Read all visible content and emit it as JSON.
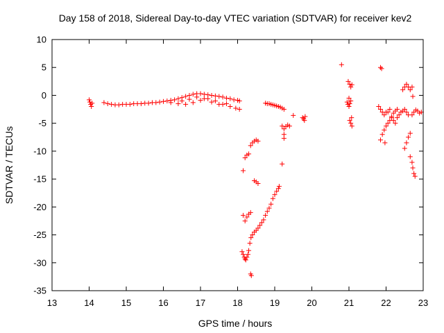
{
  "chart_data": {
    "type": "scatter",
    "title": "Day 158 of 2018, Sidereal Day-to-day VTEC variation (SDTVAR) for receiver kev2",
    "xlabel": "GPS time / hours",
    "ylabel": "SDTVAR / TECUs",
    "xlim": [
      13,
      23
    ],
    "ylim": [
      -35,
      10
    ],
    "xticks": [
      "13",
      "14",
      "15",
      "16",
      "17",
      "18",
      "19",
      "20",
      "21",
      "22",
      "23"
    ],
    "yticks": [
      "10",
      "5",
      "0",
      "-5",
      "-10",
      "-15",
      "-20",
      "-25",
      "-30",
      "-35"
    ],
    "marker": "+",
    "color": "#ff0000",
    "series": [
      {
        "name": "SDTVAR",
        "points": [
          [
            14.0,
            -0.8
          ],
          [
            14.02,
            -1.2
          ],
          [
            14.04,
            -1.6
          ],
          [
            14.06,
            -2.0
          ],
          [
            14.08,
            -1.4
          ],
          [
            14.4,
            -1.3
          ],
          [
            14.5,
            -1.5
          ],
          [
            14.6,
            -1.6
          ],
          [
            14.7,
            -1.7
          ],
          [
            14.8,
            -1.7
          ],
          [
            14.9,
            -1.6
          ],
          [
            15.0,
            -1.6
          ],
          [
            15.1,
            -1.6
          ],
          [
            15.2,
            -1.5
          ],
          [
            15.3,
            -1.5
          ],
          [
            15.4,
            -1.5
          ],
          [
            15.5,
            -1.4
          ],
          [
            15.6,
            -1.4
          ],
          [
            15.7,
            -1.3
          ],
          [
            15.8,
            -1.3
          ],
          [
            15.9,
            -1.2
          ],
          [
            16.0,
            -1.1
          ],
          [
            16.1,
            -1.0
          ],
          [
            16.2,
            -0.9
          ],
          [
            16.3,
            -0.8
          ],
          [
            16.4,
            -0.6
          ],
          [
            16.5,
            -0.4
          ],
          [
            16.6,
            -0.2
          ],
          [
            16.7,
            0.0
          ],
          [
            16.8,
            0.2
          ],
          [
            16.9,
            0.3
          ],
          [
            17.0,
            0.3
          ],
          [
            17.1,
            0.2
          ],
          [
            17.2,
            0.1
          ],
          [
            17.3,
            0.0
          ],
          [
            17.4,
            -0.1
          ],
          [
            17.5,
            -0.2
          ],
          [
            17.6,
            -0.3
          ],
          [
            17.7,
            -0.5
          ],
          [
            17.8,
            -0.6
          ],
          [
            17.9,
            -0.8
          ],
          [
            18.0,
            -0.9
          ],
          [
            18.05,
            -1.0
          ],
          [
            16.2,
            -1.3
          ],
          [
            16.4,
            -1.5
          ],
          [
            16.6,
            -1.6
          ],
          [
            16.8,
            -1.3
          ],
          [
            17.0,
            -0.9
          ],
          [
            17.2,
            -0.6
          ],
          [
            17.4,
            -1.0
          ],
          [
            17.6,
            -1.6
          ],
          [
            17.8,
            -2.0
          ],
          [
            17.95,
            -2.3
          ],
          [
            18.05,
            -2.5
          ],
          [
            16.5,
            -1.0
          ],
          [
            16.7,
            -0.7
          ],
          [
            16.9,
            -0.3
          ],
          [
            17.1,
            -0.6
          ],
          [
            17.3,
            -1.2
          ],
          [
            17.5,
            -1.6
          ],
          [
            17.7,
            -1.5
          ],
          [
            18.15,
            -13.5
          ],
          [
            18.2,
            -11.2
          ],
          [
            18.25,
            -10.7
          ],
          [
            18.3,
            -10.5
          ],
          [
            18.35,
            -9.0
          ],
          [
            18.4,
            -8.5
          ],
          [
            18.45,
            -8.2
          ],
          [
            18.5,
            -8.0
          ],
          [
            18.55,
            -8.2
          ],
          [
            18.15,
            -21.5
          ],
          [
            18.2,
            -22.5
          ],
          [
            18.25,
            -21.8
          ],
          [
            18.3,
            -21.3
          ],
          [
            18.35,
            -21.0
          ],
          [
            18.12,
            -28.0
          ],
          [
            18.15,
            -28.5
          ],
          [
            18.18,
            -29.0
          ],
          [
            18.2,
            -29.3
          ],
          [
            18.22,
            -29.5
          ],
          [
            18.25,
            -29.0
          ],
          [
            18.28,
            -28.5
          ],
          [
            18.3,
            -27.8
          ],
          [
            18.33,
            -26.5
          ],
          [
            18.36,
            -25.5
          ],
          [
            18.4,
            -25.0
          ],
          [
            18.45,
            -24.5
          ],
          [
            18.5,
            -24.2
          ],
          [
            18.55,
            -23.8
          ],
          [
            18.6,
            -23.3
          ],
          [
            18.65,
            -22.8
          ],
          [
            18.7,
            -22.3
          ],
          [
            18.75,
            -21.5
          ],
          [
            18.8,
            -20.8
          ],
          [
            18.85,
            -20.2
          ],
          [
            18.9,
            -19.5
          ],
          [
            18.95,
            -18.5
          ],
          [
            19.0,
            -17.8
          ],
          [
            19.05,
            -17.2
          ],
          [
            19.1,
            -16.7
          ],
          [
            19.12,
            -16.3
          ],
          [
            18.35,
            -32.0
          ],
          [
            18.37,
            -32.3
          ],
          [
            18.45,
            -15.3
          ],
          [
            18.5,
            -15.5
          ],
          [
            18.55,
            -15.8
          ],
          [
            18.75,
            -1.4
          ],
          [
            18.8,
            -1.5
          ],
          [
            18.85,
            -1.5
          ],
          [
            18.9,
            -1.6
          ],
          [
            18.95,
            -1.7
          ],
          [
            19.0,
            -1.8
          ],
          [
            19.05,
            -1.9
          ],
          [
            19.1,
            -2.0
          ],
          [
            19.15,
            -2.1
          ],
          [
            19.2,
            -2.3
          ],
          [
            19.25,
            -2.5
          ],
          [
            19.2,
            -5.5
          ],
          [
            19.25,
            -6.0
          ],
          [
            19.3,
            -5.6
          ],
          [
            19.35,
            -5.3
          ],
          [
            19.4,
            -5.5
          ],
          [
            19.25,
            -7.0
          ],
          [
            19.25,
            -7.7
          ],
          [
            19.5,
            -3.6
          ],
          [
            19.2,
            -12.3
          ],
          [
            19.75,
            -4.0
          ],
          [
            19.78,
            -4.2
          ],
          [
            19.8,
            -4.5
          ],
          [
            19.82,
            -3.8
          ],
          [
            20.8,
            5.5
          ],
          [
            20.95,
            -1.2
          ],
          [
            20.97,
            -1.6
          ],
          [
            21.0,
            -2.0
          ],
          [
            21.0,
            -0.5
          ],
          [
            21.02,
            -1.5
          ],
          [
            21.05,
            -1.0
          ],
          [
            20.98,
            2.5
          ],
          [
            21.02,
            2.0
          ],
          [
            21.05,
            1.5
          ],
          [
            21.08,
            1.9
          ],
          [
            21.02,
            -4.5
          ],
          [
            21.05,
            -5.0
          ],
          [
            21.07,
            -4.0
          ],
          [
            21.08,
            -5.5
          ],
          [
            21.85,
            5.0
          ],
          [
            21.88,
            4.8
          ],
          [
            21.8,
            -2.0
          ],
          [
            21.85,
            -2.5
          ],
          [
            21.9,
            -3.0
          ],
          [
            21.95,
            -3.5
          ],
          [
            22.0,
            -3.0
          ],
          [
            21.85,
            -8.0
          ],
          [
            21.9,
            -7.0
          ],
          [
            21.95,
            -6.2
          ],
          [
            22.0,
            -5.5
          ],
          [
            22.05,
            -5.0
          ],
          [
            22.1,
            -4.5
          ],
          [
            22.15,
            -3.8
          ],
          [
            22.2,
            -3.2
          ],
          [
            22.25,
            -2.8
          ],
          [
            22.3,
            -2.5
          ],
          [
            21.97,
            -8.5
          ],
          [
            22.05,
            -3.0
          ],
          [
            22.1,
            -2.5
          ],
          [
            22.15,
            -4.0
          ],
          [
            22.2,
            -4.5
          ],
          [
            22.25,
            -5.0
          ],
          [
            22.3,
            -4.0
          ],
          [
            22.35,
            -3.5
          ],
          [
            22.4,
            -3.0
          ],
          [
            22.45,
            -2.8
          ],
          [
            22.5,
            -2.5
          ],
          [
            22.55,
            -3.0
          ],
          [
            22.6,
            -3.5
          ],
          [
            22.45,
            1.0
          ],
          [
            22.5,
            1.5
          ],
          [
            22.55,
            2.0
          ],
          [
            22.6,
            1.5
          ],
          [
            22.65,
            1.0
          ],
          [
            22.7,
            1.5
          ],
          [
            22.72,
            -0.2
          ],
          [
            22.5,
            -9.5
          ],
          [
            22.55,
            -8.5
          ],
          [
            22.6,
            -7.5
          ],
          [
            22.65,
            -6.8
          ],
          [
            22.65,
            -11.0
          ],
          [
            22.7,
            -12.0
          ],
          [
            22.72,
            -13.0
          ],
          [
            22.75,
            -14.0
          ],
          [
            22.78,
            -14.5
          ],
          [
            22.7,
            -3.5
          ],
          [
            22.75,
            -3.0
          ],
          [
            22.8,
            -2.6
          ],
          [
            22.85,
            -2.8
          ],
          [
            22.9,
            -3.2
          ],
          [
            22.95,
            -3.0
          ]
        ]
      }
    ]
  }
}
